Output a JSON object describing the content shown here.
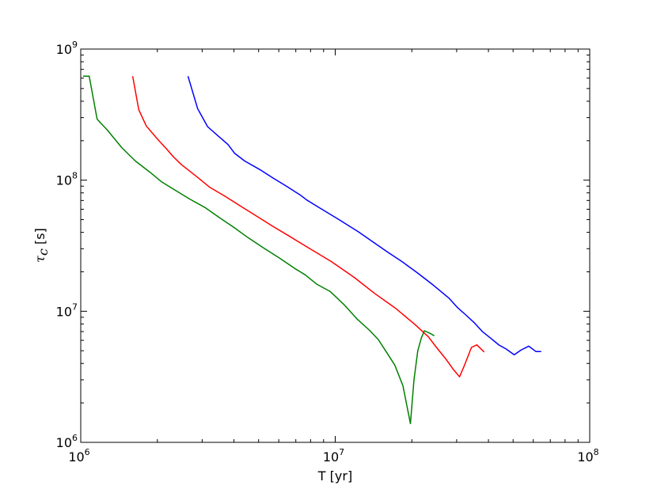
{
  "chart_data": {
    "type": "line",
    "title": "",
    "xlabel": "T [yr]",
    "ylabel": "[s]",
    "ylabel_symbol": "τ",
    "ylabel_subscript": "c",
    "xscale": "log",
    "yscale": "log",
    "xlim": [
      1000000,
      100000000
    ],
    "ylim": [
      1000000,
      1000000000
    ],
    "x_tick_labels": [
      {
        "value": 1000000,
        "base": "10",
        "exp": "6"
      },
      {
        "value": 10000000,
        "base": "10",
        "exp": "7"
      },
      {
        "value": 100000000,
        "base": "10",
        "exp": "8"
      }
    ],
    "y_tick_labels": [
      {
        "value": 1000000,
        "base": "10",
        "exp": "6"
      },
      {
        "value": 10000000,
        "base": "10",
        "exp": "7"
      },
      {
        "value": 100000000,
        "base": "10",
        "exp": "8"
      },
      {
        "value": 1000000000,
        "base": "10",
        "exp": "9"
      }
    ],
    "grid": false,
    "legend": false,
    "series": [
      {
        "color": "#0000ff",
        "x": [
          2640000,
          2880000,
          3150000,
          3460000,
          3790000,
          4030000,
          4410000,
          5110000,
          5650000,
          6510000,
          7310000,
          7730000,
          8560000,
          10300000,
          12330000,
          14160000,
          16180000,
          18240000,
          21040000,
          24300000,
          27970000,
          30330000,
          32850000,
          35250000,
          37800000,
          40570000,
          44000000,
          47020000,
          50480000,
          53620000,
          57570000,
          61450000,
          64450000
        ],
        "y": [
          621000000,
          351000000,
          256000000,
          218000000,
          187000000,
          160000000,
          140000000,
          119000000,
          105000000,
          88600000,
          76800000,
          70600000,
          62500000,
          50300000,
          40400000,
          33500000,
          28000000,
          24000000,
          19600000,
          15800000,
          12600000,
          10600000,
          9240000,
          8140000,
          7020000,
          6290000,
          5530000,
          5150000,
          4650000,
          5050000,
          5420000,
          4930000,
          4930000
        ]
      },
      {
        "color": "#ff0000",
        "x": [
          1600000,
          1690000,
          1810000,
          2010000,
          2180000,
          2310000,
          2480000,
          2880000,
          3220000,
          3690000,
          4230000,
          4800000,
          5730000,
          6510000,
          7650000,
          9660000,
          11880000,
          14270000,
          17180000,
          20460000,
          23200000,
          25000000,
          27200000,
          29200000,
          30800000,
          32200000,
          34300000,
          36000000,
          38500000
        ],
        "y": [
          621000000,
          345000000,
          259000000,
          204000000,
          172000000,
          151000000,
          132000000,
          105000000,
          88000000,
          75400000,
          63700000,
          54700000,
          44100000,
          38000000,
          31400000,
          23900000,
          18100000,
          13700000,
          10600000,
          8000000,
          6400000,
          5300000,
          4330000,
          3570000,
          3160000,
          3880000,
          5300000,
          5540000,
          4890000
        ]
      },
      {
        "color": "#008000",
        "x": [
          1020000,
          1080000,
          1160000,
          1270000,
          1450000,
          1640000,
          1870000,
          2080000,
          2340000,
          2680000,
          3080000,
          3520000,
          4010000,
          4520000,
          5220000,
          6030000,
          6940000,
          7610000,
          8460000,
          9530000,
          10850000,
          12230000,
          13650000,
          14760000,
          15950000,
          17130000,
          18450000,
          19750000,
          20400000,
          21100000,
          21800000,
          22400000,
          23700000,
          24500000
        ],
        "y": [
          621000000,
          621000000,
          292000000,
          242000000,
          177000000,
          140000000,
          115000000,
          97000000,
          84300000,
          71800000,
          61800000,
          51500000,
          43500000,
          36700000,
          30500000,
          25500000,
          21200000,
          19000000,
          16100000,
          14200000,
          11200000,
          8670000,
          7150000,
          6080000,
          4830000,
          3890000,
          2710000,
          1390000,
          3000000,
          5000000,
          6250000,
          7100000,
          6750000,
          6500000
        ]
      }
    ]
  }
}
